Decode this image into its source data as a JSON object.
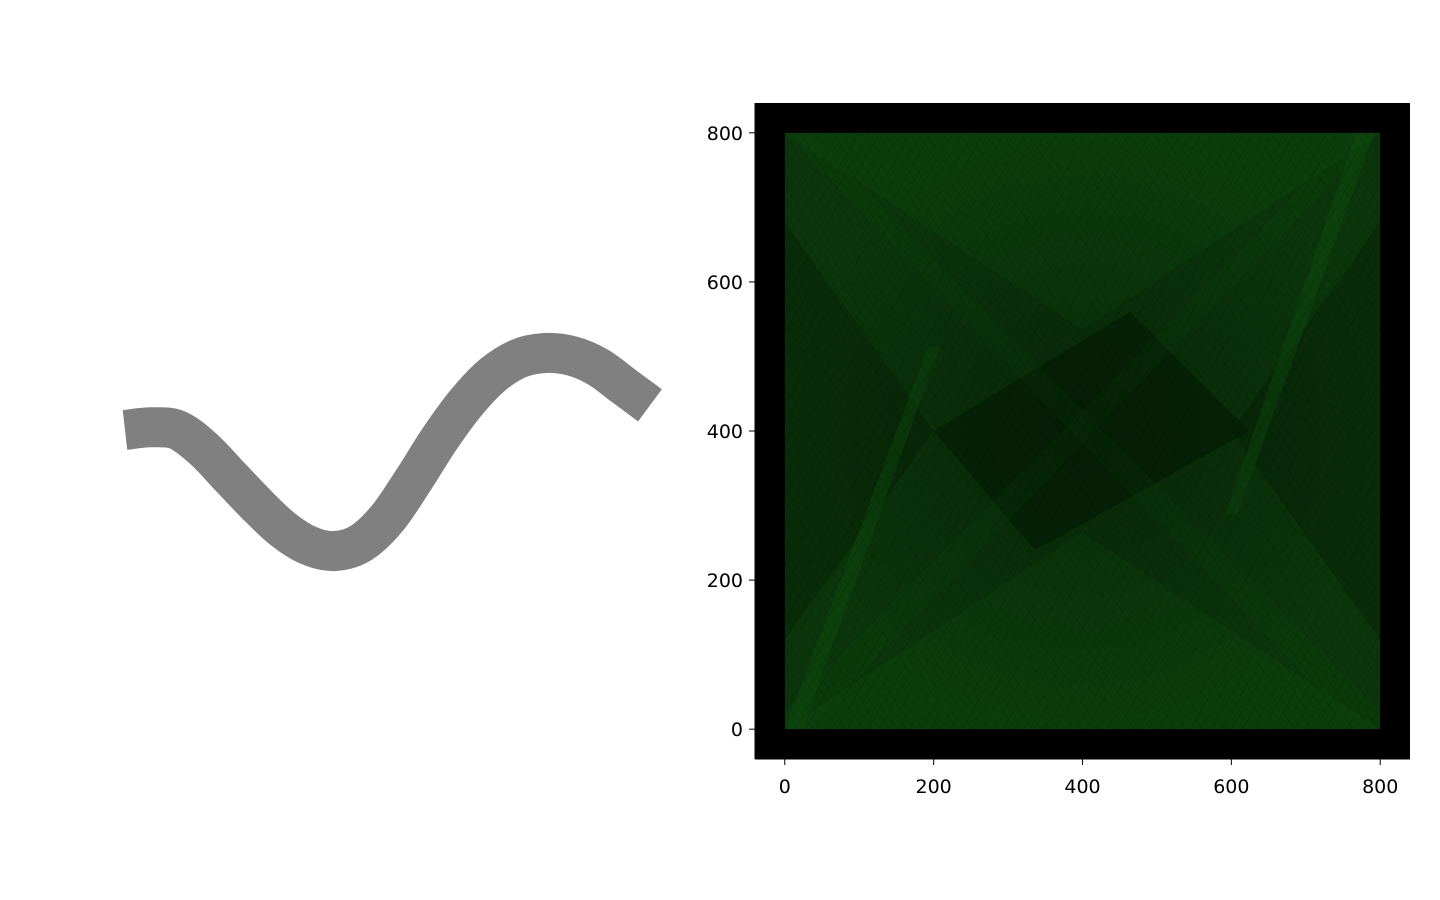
{
  "chart_data": [
    {
      "type": "line",
      "title": "",
      "xlabel": "",
      "ylabel": "",
      "axes_visible": false,
      "series": [
        {
          "color": "#808080",
          "x": [
            0,
            0.05,
            0.1,
            0.15,
            0.2,
            0.25,
            0.3,
            0.35,
            0.4,
            0.45,
            0.5,
            0.55,
            0.6,
            0.65,
            0.7,
            0.75,
            0.8,
            0.85,
            0.9,
            0.95,
            1.0
          ],
          "y": [
            0.0,
            0.01,
            0.0,
            -0.07,
            -0.17,
            -0.27,
            -0.36,
            -0.42,
            -0.44,
            -0.41,
            -0.32,
            -0.18,
            -0.03,
            0.1,
            0.2,
            0.26,
            0.28,
            0.27,
            0.23,
            0.16,
            0.09
          ]
        }
      ]
    },
    {
      "type": "heatmap",
      "title": "",
      "xlabel": "",
      "ylabel": "",
      "xlim": [
        -40,
        840
      ],
      "ylim": [
        -40,
        840
      ],
      "image_extent": [
        0,
        800,
        0,
        800
      ],
      "xticks": [
        0,
        200,
        400,
        600,
        800
      ],
      "yticks": [
        0,
        200,
        400,
        600,
        800
      ],
      "xtick_labels": [
        "0",
        "200",
        "400",
        "600",
        "800"
      ],
      "ytick_labels": [
        "0",
        "200",
        "400",
        "600",
        "800"
      ],
      "background": "#000000",
      "colors": {
        "bright": "#0f4a0f",
        "mid": "#0b360b",
        "dark": "#041e04"
      },
      "grid": false
    }
  ]
}
